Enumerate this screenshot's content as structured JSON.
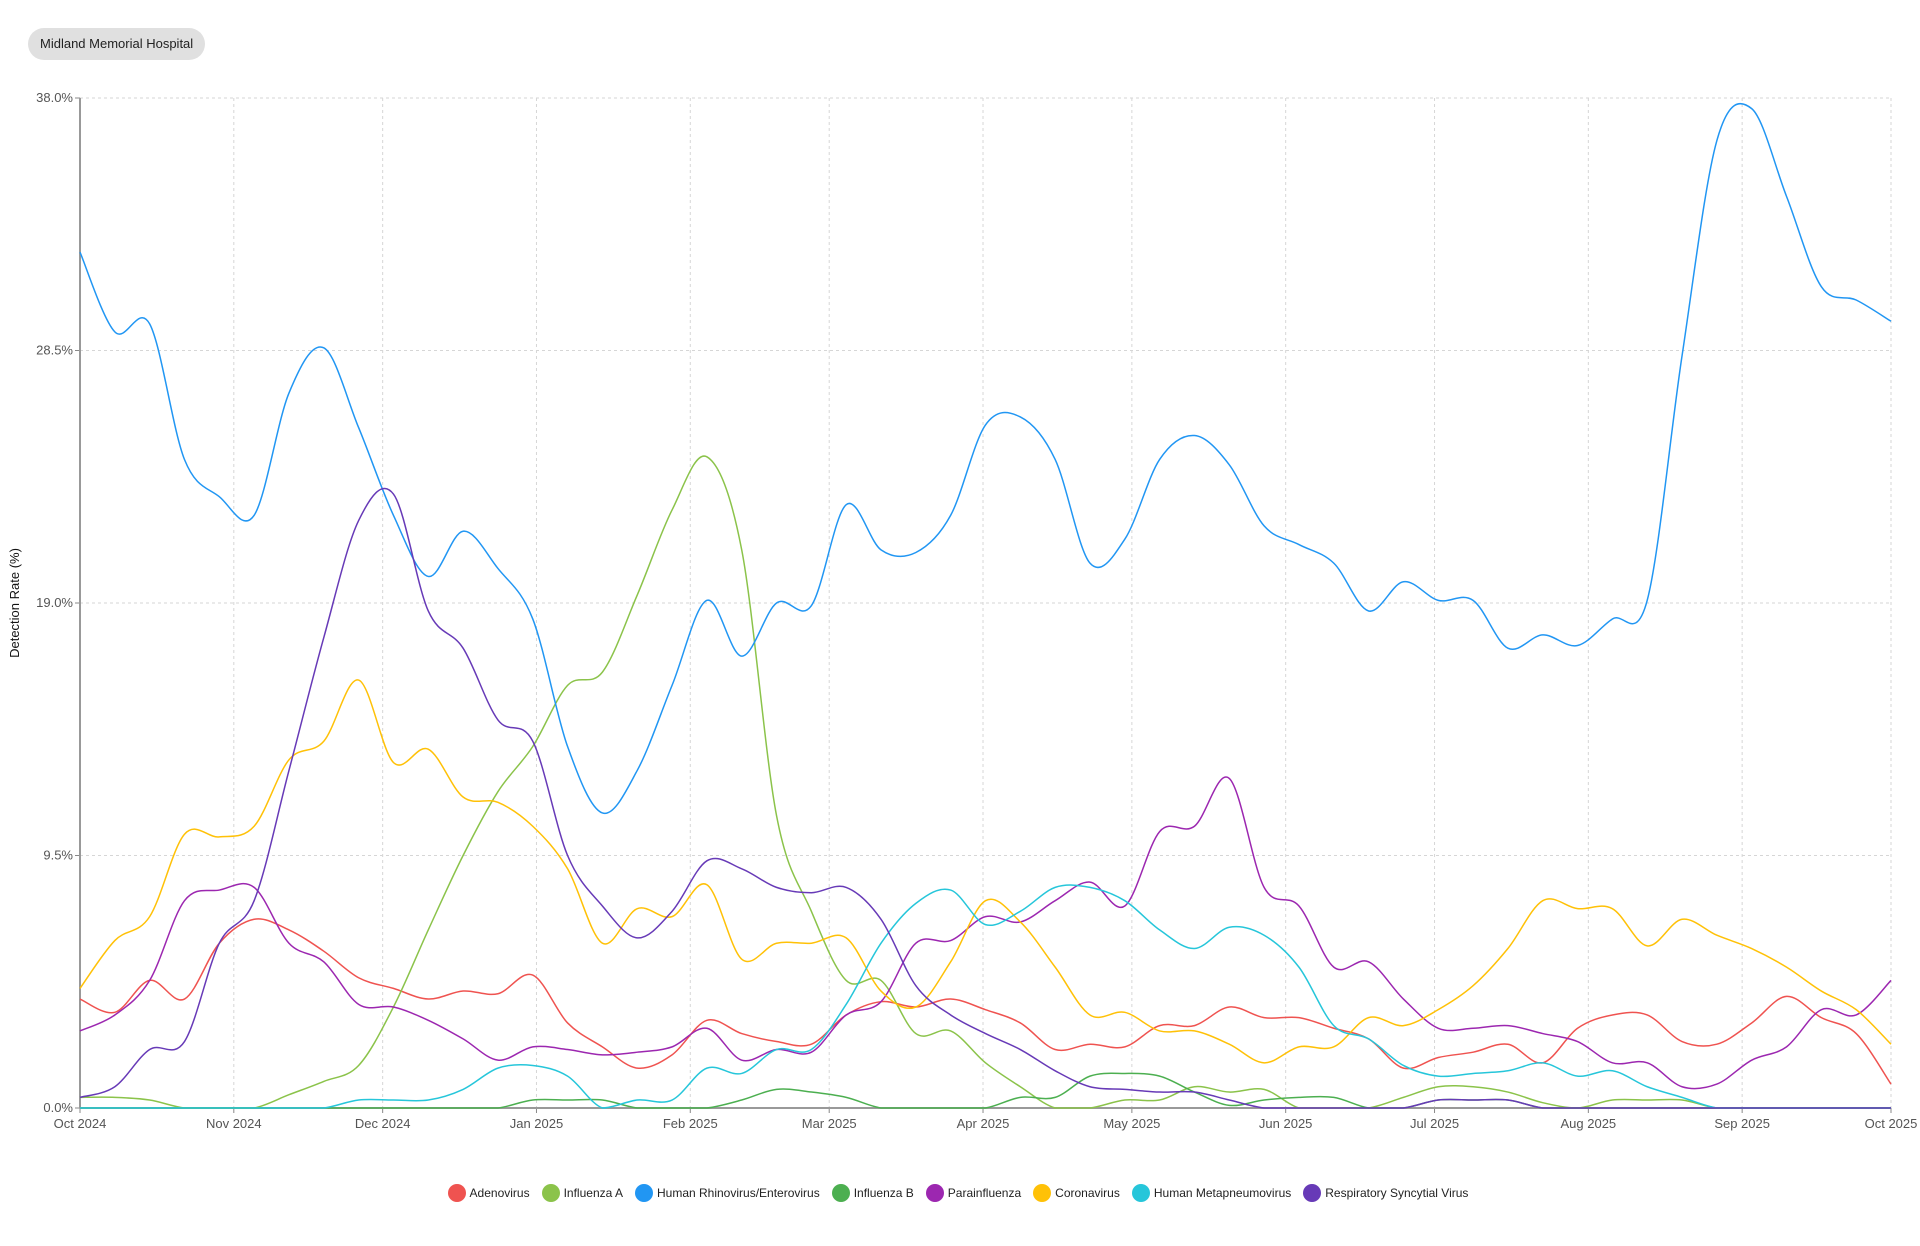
{
  "header": {
    "facility": "Midland Memorial Hospital"
  },
  "chart_data": {
    "type": "line",
    "title": "",
    "xlabel": "",
    "ylabel": "Detection Rate (%)",
    "ylim": [
      0,
      38
    ],
    "yticks": [
      "0.0%",
      "9.5%",
      "19.0%",
      "28.5%",
      "38.0%"
    ],
    "ytick_values": [
      0,
      9.5,
      19,
      28.5,
      38
    ],
    "xticks": [
      "Oct 2024",
      "Nov 2024",
      "Dec 2024",
      "Jan 2025",
      "Feb 2025",
      "Mar 2025",
      "Apr 2025",
      "May 2025",
      "Jun 2025",
      "Jul 2025",
      "Aug 2025",
      "Sep 2025",
      "Oct 2025"
    ],
    "xtick_days": [
      0,
      31,
      61,
      92,
      123,
      151,
      182,
      212,
      243,
      273,
      304,
      335,
      365
    ],
    "x_unit": "weeks since Oct 1 2024 (0-52)",
    "grid": true,
    "legend_position": "bottom-center",
    "series": [
      {
        "name": "Adenovirus",
        "color": "#ef5350",
        "values": [
          4.1,
          3.6,
          4.8,
          4.1,
          6.2,
          7.1,
          6.7,
          5.9,
          4.9,
          4.5,
          4.1,
          4.4,
          4.3,
          5.0,
          3.2,
          2.3,
          1.5,
          2.0,
          3.3,
          2.8,
          2.5,
          2.4,
          3.5,
          4.0,
          3.8,
          4.1,
          3.7,
          3.2,
          2.2,
          2.4,
          2.3,
          3.1,
          3.1,
          3.8,
          3.4,
          3.4,
          3.0,
          2.6,
          1.5,
          1.9,
          2.1,
          2.4,
          1.7,
          3.0,
          3.5,
          3.5,
          2.5,
          2.4,
          3.2,
          4.2,
          3.4,
          2.8,
          0.9
        ]
      },
      {
        "name": "Influenza A",
        "color": "#8bc34a",
        "values": [
          0.4,
          0.4,
          0.3,
          0,
          0,
          0,
          0.5,
          1.0,
          1.6,
          3.8,
          6.7,
          9.5,
          11.9,
          13.6,
          15.9,
          16.4,
          19.3,
          22.5,
          24.5,
          21.0,
          11.0,
          7.4,
          4.8,
          4.8,
          2.8,
          2.9,
          1.7,
          0.8,
          0,
          0,
          0.3,
          0.3,
          0.8,
          0.6,
          0.7,
          0,
          0,
          0,
          0.4,
          0.8,
          0.8,
          0.6,
          0.2,
          0,
          0.3,
          0.3,
          0.3,
          0,
          0,
          0,
          0,
          0,
          0
        ]
      },
      {
        "name": "Human Rhinovirus/Enterovirus",
        "color": "#2196f3",
        "values": [
          32.2,
          29.2,
          29.5,
          24.4,
          23.0,
          22.3,
          26.9,
          28.6,
          25.6,
          22.3,
          20.0,
          21.7,
          20.3,
          18.4,
          13.6,
          11.1,
          12.7,
          15.9,
          19.1,
          17.0,
          19.0,
          18.9,
          22.7,
          21.0,
          20.9,
          22.3,
          25.7,
          26.0,
          24.4,
          20.5,
          21.4,
          24.4,
          25.3,
          24.2,
          21.9,
          21.2,
          20.5,
          18.7,
          19.8,
          19.1,
          19.1,
          17.3,
          17.8,
          17.4,
          18.4,
          19.1,
          28.3,
          36.4,
          37.6,
          34.3,
          30.9,
          30.4,
          29.6
        ]
      },
      {
        "name": "Influenza B",
        "color": "#4caf50",
        "values": [
          0,
          0,
          0,
          0,
          0,
          0,
          0,
          0,
          0,
          0,
          0,
          0,
          0,
          0.3,
          0.3,
          0.3,
          0,
          0,
          0,
          0.3,
          0.7,
          0.6,
          0.4,
          0,
          0,
          0,
          0,
          0.4,
          0.4,
          1.2,
          1.3,
          1.2,
          0.6,
          0.1,
          0.3,
          0.4,
          0.4,
          0,
          0,
          0.3,
          0.3,
          0.3,
          0,
          0,
          0,
          0,
          0,
          0,
          0,
          0,
          0,
          0,
          0
        ]
      },
      {
        "name": "Parainfluenza",
        "color": "#9c27b0",
        "values": [
          2.9,
          3.5,
          4.8,
          7.8,
          8.2,
          8.3,
          6.2,
          5.5,
          3.9,
          3.8,
          3.3,
          2.6,
          1.8,
          2.3,
          2.2,
          2.0,
          2.1,
          2.3,
          3.0,
          1.8,
          2.2,
          2.1,
          3.5,
          4.0,
          6.2,
          6.3,
          7.2,
          7.0,
          7.8,
          8.5,
          7.6,
          10.4,
          10.6,
          12.4,
          8.3,
          7.6,
          5.3,
          5.5,
          4.1,
          3.0,
          3.0,
          3.1,
          2.8,
          2.5,
          1.7,
          1.7,
          0.8,
          0.9,
          1.8,
          2.3,
          3.7,
          3.5,
          4.8
        ]
      },
      {
        "name": "Coronavirus",
        "color": "#ffc107",
        "values": [
          4.5,
          6.3,
          7.2,
          10.3,
          10.2,
          10.6,
          13.1,
          13.8,
          16.1,
          13.0,
          13.5,
          11.7,
          11.5,
          10.6,
          9.0,
          6.2,
          7.5,
          7.2,
          8.4,
          5.6,
          6.2,
          6.2,
          6.4,
          4.4,
          3.8,
          5.5,
          7.8,
          7.0,
          5.3,
          3.5,
          3.6,
          2.9,
          2.9,
          2.4,
          1.7,
          2.3,
          2.3,
          3.4,
          3.1,
          3.7,
          4.6,
          6.0,
          7.8,
          7.5,
          7.5,
          6.1,
          7.1,
          6.5,
          6.0,
          5.3,
          4.4,
          3.7,
          2.4
        ]
      },
      {
        "name": "Human Metapneumovirus",
        "color": "#26c6da",
        "values": [
          0,
          0,
          0,
          0,
          0,
          0,
          0,
          0,
          0.3,
          0.3,
          0.3,
          0.7,
          1.5,
          1.6,
          1.2,
          0,
          0.3,
          0.3,
          1.5,
          1.3,
          2.2,
          2.2,
          3.9,
          6.2,
          7.7,
          8.2,
          6.9,
          7.4,
          8.3,
          8.3,
          7.8,
          6.7,
          6.0,
          6.8,
          6.5,
          5.3,
          3.1,
          2.6,
          1.6,
          1.2,
          1.3,
          1.4,
          1.7,
          1.2,
          1.4,
          0.8,
          0.4,
          0,
          0,
          0,
          0,
          0,
          0
        ]
      },
      {
        "name": "Respiratory Syncytial Virus",
        "color": "#673ab7",
        "values": [
          0.4,
          0.8,
          2.2,
          2.5,
          6.2,
          7.8,
          12.7,
          17.7,
          22.1,
          23.1,
          18.7,
          17.3,
          14.6,
          13.8,
          9.5,
          7.6,
          6.4,
          7.4,
          9.3,
          9.0,
          8.3,
          8.1,
          8.3,
          7.1,
          4.6,
          3.5,
          2.8,
          2.2,
          1.4,
          0.8,
          0.7,
          0.6,
          0.6,
          0.3,
          0,
          0,
          0,
          0,
          0,
          0.3,
          0.3,
          0.3,
          0,
          0,
          0,
          0,
          0,
          0,
          0,
          0,
          0,
          0,
          0
        ]
      }
    ]
  }
}
